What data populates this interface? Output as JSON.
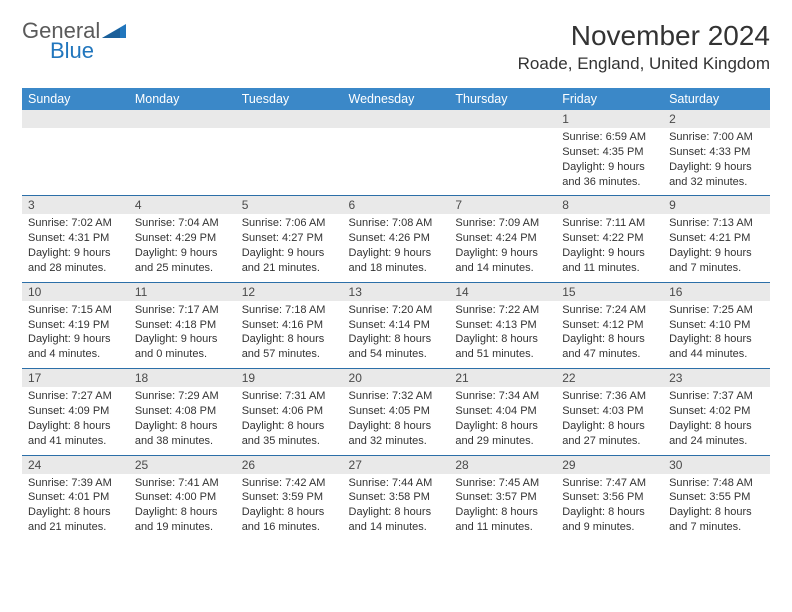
{
  "logo": {
    "word1": "General",
    "word2": "Blue"
  },
  "title": "November 2024",
  "location": "Roade, England, United Kingdom",
  "colors": {
    "header_bg": "#3b88c8",
    "daynum_bg": "#e9e9e9",
    "row_border": "#2c6fa8",
    "logo_gray": "#5a5a5a",
    "logo_blue": "#2176bd"
  },
  "weekdays": [
    "Sunday",
    "Monday",
    "Tuesday",
    "Wednesday",
    "Thursday",
    "Friday",
    "Saturday"
  ],
  "weeks": [
    [
      null,
      null,
      null,
      null,
      null,
      {
        "n": "1",
        "sr": "6:59 AM",
        "ss": "4:35 PM",
        "dl": "9 hours and 36 minutes."
      },
      {
        "n": "2",
        "sr": "7:00 AM",
        "ss": "4:33 PM",
        "dl": "9 hours and 32 minutes."
      }
    ],
    [
      {
        "n": "3",
        "sr": "7:02 AM",
        "ss": "4:31 PM",
        "dl": "9 hours and 28 minutes."
      },
      {
        "n": "4",
        "sr": "7:04 AM",
        "ss": "4:29 PM",
        "dl": "9 hours and 25 minutes."
      },
      {
        "n": "5",
        "sr": "7:06 AM",
        "ss": "4:27 PM",
        "dl": "9 hours and 21 minutes."
      },
      {
        "n": "6",
        "sr": "7:08 AM",
        "ss": "4:26 PM",
        "dl": "9 hours and 18 minutes."
      },
      {
        "n": "7",
        "sr": "7:09 AM",
        "ss": "4:24 PM",
        "dl": "9 hours and 14 minutes."
      },
      {
        "n": "8",
        "sr": "7:11 AM",
        "ss": "4:22 PM",
        "dl": "9 hours and 11 minutes."
      },
      {
        "n": "9",
        "sr": "7:13 AM",
        "ss": "4:21 PM",
        "dl": "9 hours and 7 minutes."
      }
    ],
    [
      {
        "n": "10",
        "sr": "7:15 AM",
        "ss": "4:19 PM",
        "dl": "9 hours and 4 minutes."
      },
      {
        "n": "11",
        "sr": "7:17 AM",
        "ss": "4:18 PM",
        "dl": "9 hours and 0 minutes."
      },
      {
        "n": "12",
        "sr": "7:18 AM",
        "ss": "4:16 PM",
        "dl": "8 hours and 57 minutes."
      },
      {
        "n": "13",
        "sr": "7:20 AM",
        "ss": "4:14 PM",
        "dl": "8 hours and 54 minutes."
      },
      {
        "n": "14",
        "sr": "7:22 AM",
        "ss": "4:13 PM",
        "dl": "8 hours and 51 minutes."
      },
      {
        "n": "15",
        "sr": "7:24 AM",
        "ss": "4:12 PM",
        "dl": "8 hours and 47 minutes."
      },
      {
        "n": "16",
        "sr": "7:25 AM",
        "ss": "4:10 PM",
        "dl": "8 hours and 44 minutes."
      }
    ],
    [
      {
        "n": "17",
        "sr": "7:27 AM",
        "ss": "4:09 PM",
        "dl": "8 hours and 41 minutes."
      },
      {
        "n": "18",
        "sr": "7:29 AM",
        "ss": "4:08 PM",
        "dl": "8 hours and 38 minutes."
      },
      {
        "n": "19",
        "sr": "7:31 AM",
        "ss": "4:06 PM",
        "dl": "8 hours and 35 minutes."
      },
      {
        "n": "20",
        "sr": "7:32 AM",
        "ss": "4:05 PM",
        "dl": "8 hours and 32 minutes."
      },
      {
        "n": "21",
        "sr": "7:34 AM",
        "ss": "4:04 PM",
        "dl": "8 hours and 29 minutes."
      },
      {
        "n": "22",
        "sr": "7:36 AM",
        "ss": "4:03 PM",
        "dl": "8 hours and 27 minutes."
      },
      {
        "n": "23",
        "sr": "7:37 AM",
        "ss": "4:02 PM",
        "dl": "8 hours and 24 minutes."
      }
    ],
    [
      {
        "n": "24",
        "sr": "7:39 AM",
        "ss": "4:01 PM",
        "dl": "8 hours and 21 minutes."
      },
      {
        "n": "25",
        "sr": "7:41 AM",
        "ss": "4:00 PM",
        "dl": "8 hours and 19 minutes."
      },
      {
        "n": "26",
        "sr": "7:42 AM",
        "ss": "3:59 PM",
        "dl": "8 hours and 16 minutes."
      },
      {
        "n": "27",
        "sr": "7:44 AM",
        "ss": "3:58 PM",
        "dl": "8 hours and 14 minutes."
      },
      {
        "n": "28",
        "sr": "7:45 AM",
        "ss": "3:57 PM",
        "dl": "8 hours and 11 minutes."
      },
      {
        "n": "29",
        "sr": "7:47 AM",
        "ss": "3:56 PM",
        "dl": "8 hours and 9 minutes."
      },
      {
        "n": "30",
        "sr": "7:48 AM",
        "ss": "3:55 PM",
        "dl": "8 hours and 7 minutes."
      }
    ]
  ],
  "labels": {
    "sunrise": "Sunrise:",
    "sunset": "Sunset:",
    "daylight": "Daylight:"
  }
}
